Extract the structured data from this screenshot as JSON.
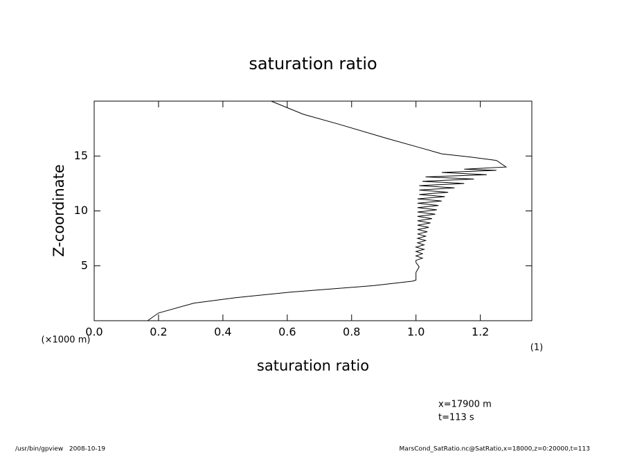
{
  "chart_data": {
    "type": "line",
    "title": "saturation ratio",
    "x_label": "saturation ratio",
    "x_unit": "(1)",
    "y_label": "Z-coordinate",
    "y_unit": "(×1000 m)",
    "annotations": [
      "x=17900 m",
      "t=113 s"
    ],
    "footer_left": "/usr/bin/gpview   2008-10-19",
    "footer_right": "MarsCond_SatRatio.nc@SatRatio,x=18000,z=0:20000,t=113",
    "color": "#000000",
    "x": [
      0.166,
      0.2,
      0.31,
      0.44,
      0.61,
      0.87,
      0.99,
      1.0,
      1.0,
      1.01,
      1.0,
      1.0,
      1.02,
      1.0,
      1.02,
      1.0,
      1.025,
      1.0,
      1.025,
      1.005,
      1.03,
      1.005,
      1.03,
      1.005,
      1.035,
      1.005,
      1.04,
      1.005,
      1.045,
      1.005,
      1.05,
      1.005,
      1.06,
      1.005,
      1.065,
      1.005,
      1.07,
      1.005,
      1.08,
      1.005,
      1.09,
      1.01,
      1.1,
      1.01,
      1.12,
      1.01,
      1.15,
      1.02,
      1.18,
      1.03,
      1.22,
      1.08,
      1.25,
      1.15,
      1.28,
      1.25,
      1.17,
      1.08,
      1.02,
      0.91,
      0.76,
      0.65,
      0.55
    ],
    "values": [
      0,
      0.7,
      1.6,
      2.1,
      2.6,
      3.2,
      3.6,
      3.7,
      4.4,
      4.9,
      5.3,
      5.5,
      5.7,
      5.9,
      6.1,
      6.3,
      6.5,
      6.7,
      6.9,
      7.1,
      7.3,
      7.5,
      7.7,
      7.9,
      8.1,
      8.3,
      8.5,
      8.7,
      8.9,
      9.1,
      9.3,
      9.5,
      9.7,
      9.9,
      10.1,
      10.3,
      10.5,
      10.7,
      10.9,
      11.1,
      11.3,
      11.5,
      11.7,
      11.9,
      12.1,
      12.3,
      12.5,
      12.7,
      12.9,
      13.1,
      13.3,
      13.5,
      13.7,
      13.8,
      14.0,
      14.6,
      14.9,
      15.2,
      15.7,
      16.6,
      17.9,
      18.8,
      20
    ],
    "xlim": [
      0,
      1.36
    ],
    "ylim": [
      0,
      20
    ],
    "xticks": [
      {
        "value": 0,
        "label": "0.0"
      },
      0.2,
      0.4,
      0.6,
      0.8,
      {
        "value": 1,
        "label": "1.0"
      },
      1.2
    ],
    "yticks": [
      5,
      10,
      15
    ]
  }
}
